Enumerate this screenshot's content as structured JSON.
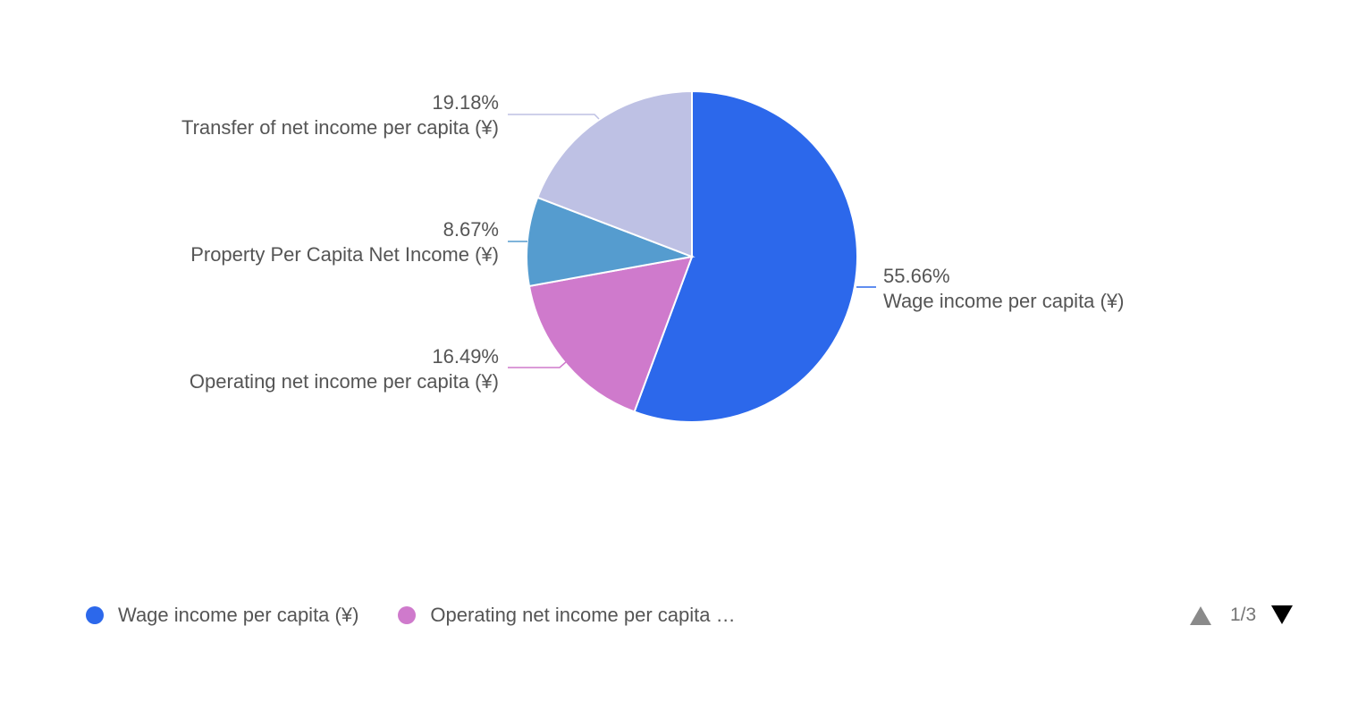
{
  "chart_data": {
    "type": "pie",
    "title": "",
    "slices": [
      {
        "label": "Wage income per capita (¥)",
        "percent_label": "55.66%",
        "value": 55.66,
        "color": "#2c68eb"
      },
      {
        "label": "Operating net income per capita (¥)",
        "percent_label": "16.49%",
        "value": 16.49,
        "color": "#cf7acc"
      },
      {
        "label": "Property Per Capita Net Income (¥)",
        "percent_label": "8.67%",
        "value": 8.67,
        "color": "#559ccf"
      },
      {
        "label": "Transfer of net income per capita (¥)",
        "percent_label": "19.18%",
        "value": 19.18,
        "color": "#bec1e4"
      }
    ],
    "legend_position": "bottom"
  },
  "legend": {
    "items": [
      {
        "label": "Wage income per capita (¥)",
        "color": "#2c68eb"
      },
      {
        "label": "Operating net income per capita …",
        "color": "#cf7acc"
      }
    ],
    "page_indicator": "1/3",
    "prev_icon": "triangle-up-icon",
    "next_icon": "triangle-down-icon"
  }
}
